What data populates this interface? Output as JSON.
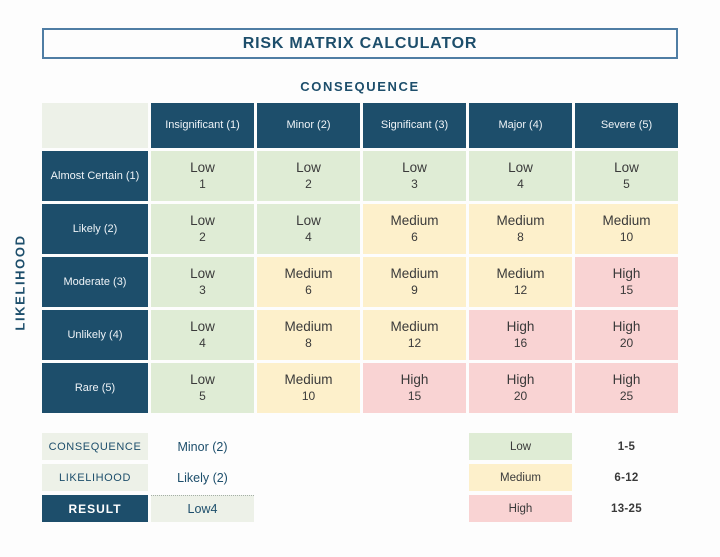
{
  "title": "RISK MATRIX CALCULATOR",
  "axes": {
    "consequence_label": "CONSEQUENCE",
    "likelihood_label": "LIKELIHOOD"
  },
  "matrix": {
    "column_headers": [
      "Insignificant (1)",
      "Minor (2)",
      "Significant (3)",
      "Major (4)",
      "Severe (5)"
    ],
    "row_headers": [
      "Almost Certain (1)",
      "Likely (2)",
      "Moderate (3)",
      "Unlikely (4)",
      "Rare (5)"
    ],
    "rows": [
      [
        {
          "rating": "Low",
          "score": "1"
        },
        {
          "rating": "Low",
          "score": "2"
        },
        {
          "rating": "Low",
          "score": "3"
        },
        {
          "rating": "Low",
          "score": "4"
        },
        {
          "rating": "Low",
          "score": "5"
        }
      ],
      [
        {
          "rating": "Low",
          "score": "2"
        },
        {
          "rating": "Low",
          "score": "4"
        },
        {
          "rating": "Medium",
          "score": "6"
        },
        {
          "rating": "Medium",
          "score": "8"
        },
        {
          "rating": "Medium",
          "score": "10"
        }
      ],
      [
        {
          "rating": "Low",
          "score": "3"
        },
        {
          "rating": "Medium",
          "score": "6"
        },
        {
          "rating": "Medium",
          "score": "9"
        },
        {
          "rating": "Medium",
          "score": "12"
        },
        {
          "rating": "High",
          "score": "15"
        }
      ],
      [
        {
          "rating": "Low",
          "score": "4"
        },
        {
          "rating": "Medium",
          "score": "8"
        },
        {
          "rating": "Medium",
          "score": "12"
        },
        {
          "rating": "High",
          "score": "16"
        },
        {
          "rating": "High",
          "score": "20"
        }
      ],
      [
        {
          "rating": "Low",
          "score": "5"
        },
        {
          "rating": "Medium",
          "score": "10"
        },
        {
          "rating": "High",
          "score": "15"
        },
        {
          "rating": "High",
          "score": "20"
        },
        {
          "rating": "High",
          "score": "25"
        }
      ]
    ]
  },
  "calculator": {
    "rows": [
      {
        "label": "CONSEQUENCE",
        "value": "Minor (2)"
      },
      {
        "label": "LIKELIHOOD",
        "value": "Likely (2)"
      },
      {
        "label": "RESULT",
        "value": "Low4"
      }
    ]
  },
  "legend": [
    {
      "label": "Low",
      "range": "1-5",
      "color": "#dfecd5"
    },
    {
      "label": "Medium",
      "range": "6-12",
      "color": "#fdf0cb"
    },
    {
      "label": "High",
      "range": "13-25",
      "color": "#f9d3d3"
    }
  ],
  "colors": {
    "navy": "#1d4e6b",
    "title_border": "#4f7da4",
    "low": "#dfecd5",
    "medium": "#fdf0cb",
    "high": "#f9d3d3",
    "label_background": "#edf1e8",
    "cell_text": "#3a3a3a"
  }
}
